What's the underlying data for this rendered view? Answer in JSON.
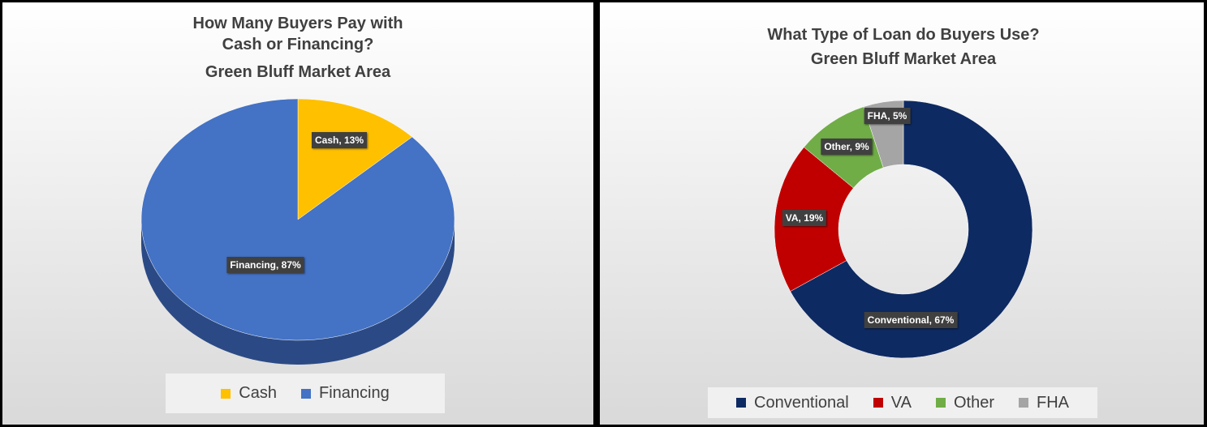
{
  "chart_data": [
    {
      "type": "pie",
      "title": "How Many Buyers Pay with Cash or Financing?",
      "subtitle": "Green Bluff Market Area",
      "categories": [
        "Cash",
        "Financing"
      ],
      "values": [
        13,
        87
      ],
      "value_labels": [
        "Cash, 13%",
        "Financing, 87%"
      ],
      "colors": [
        "#ffc000",
        "#4472c4"
      ],
      "legend": "bottom"
    },
    {
      "type": "donut",
      "title": "What Type of Loan do Buyers Use?",
      "subtitle": "Green Bluff Market Area",
      "categories": [
        "Conventional",
        "VA",
        "Other",
        "FHA"
      ],
      "values": [
        67,
        19,
        9,
        5
      ],
      "value_labels": [
        "Conventional, 67%",
        "VA, 19%",
        "Other, 9%",
        "FHA, 5%"
      ],
      "colors": [
        "#0e2a62",
        "#c00000",
        "#70ad47",
        "#a5a5a5"
      ],
      "legend": "bottom"
    }
  ]
}
